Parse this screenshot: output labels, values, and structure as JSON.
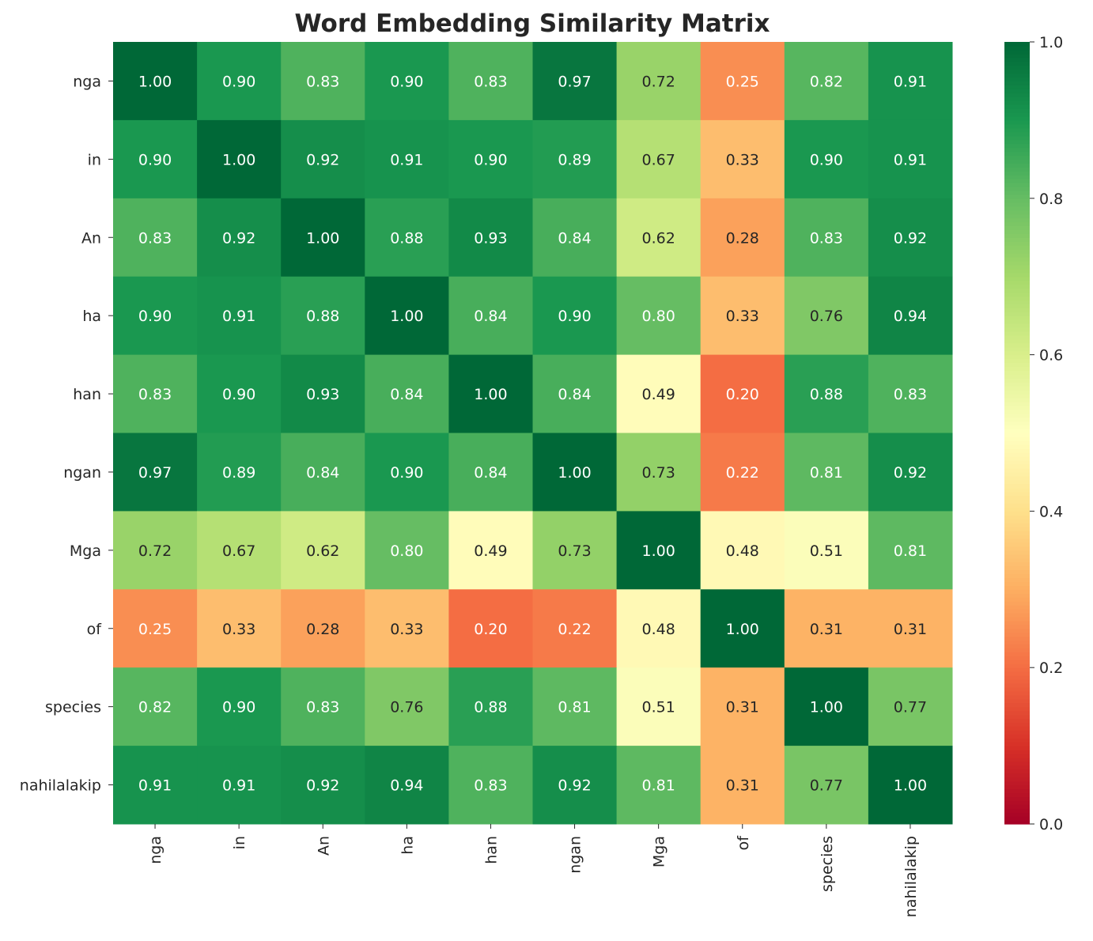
{
  "chart_data": {
    "type": "heatmap",
    "title": "Word Embedding Similarity Matrix",
    "xlabel": "",
    "ylabel": "",
    "row_labels": [
      "nga",
      "in",
      "An",
      "ha",
      "han",
      "ngan",
      "Mga",
      "of",
      "species",
      "nahilalakip"
    ],
    "col_labels": [
      "nga",
      "in",
      "An",
      "ha",
      "han",
      "ngan",
      "Mga",
      "of",
      "species",
      "nahilalakip"
    ],
    "values": [
      [
        1.0,
        0.9,
        0.83,
        0.9,
        0.83,
        0.97,
        0.72,
        0.25,
        0.82,
        0.91
      ],
      [
        0.9,
        1.0,
        0.92,
        0.91,
        0.9,
        0.89,
        0.67,
        0.33,
        0.9,
        0.91
      ],
      [
        0.83,
        0.92,
        1.0,
        0.88,
        0.93,
        0.84,
        0.62,
        0.28,
        0.83,
        0.92
      ],
      [
        0.9,
        0.91,
        0.88,
        1.0,
        0.84,
        0.9,
        0.8,
        0.33,
        0.76,
        0.94
      ],
      [
        0.83,
        0.9,
        0.93,
        0.84,
        1.0,
        0.84,
        0.49,
        0.2,
        0.88,
        0.83
      ],
      [
        0.97,
        0.89,
        0.84,
        0.9,
        0.84,
        1.0,
        0.73,
        0.22,
        0.81,
        0.92
      ],
      [
        0.72,
        0.67,
        0.62,
        0.8,
        0.49,
        0.73,
        1.0,
        0.48,
        0.51,
        0.81
      ],
      [
        0.25,
        0.33,
        0.28,
        0.33,
        0.2,
        0.22,
        0.48,
        1.0,
        0.31,
        0.31
      ],
      [
        0.82,
        0.9,
        0.83,
        0.76,
        0.88,
        0.81,
        0.51,
        0.31,
        1.0,
        0.77
      ],
      [
        0.91,
        0.91,
        0.92,
        0.94,
        0.83,
        0.92,
        0.81,
        0.31,
        0.77,
        1.0
      ]
    ],
    "annotation_format": "0.00",
    "colormap": "RdYlGn",
    "vmin": 0.0,
    "vmax": 1.0,
    "colorbar_ticks": [
      "0.0",
      "0.2",
      "0.4",
      "0.6",
      "0.8",
      "1.0"
    ],
    "grid": false
  }
}
